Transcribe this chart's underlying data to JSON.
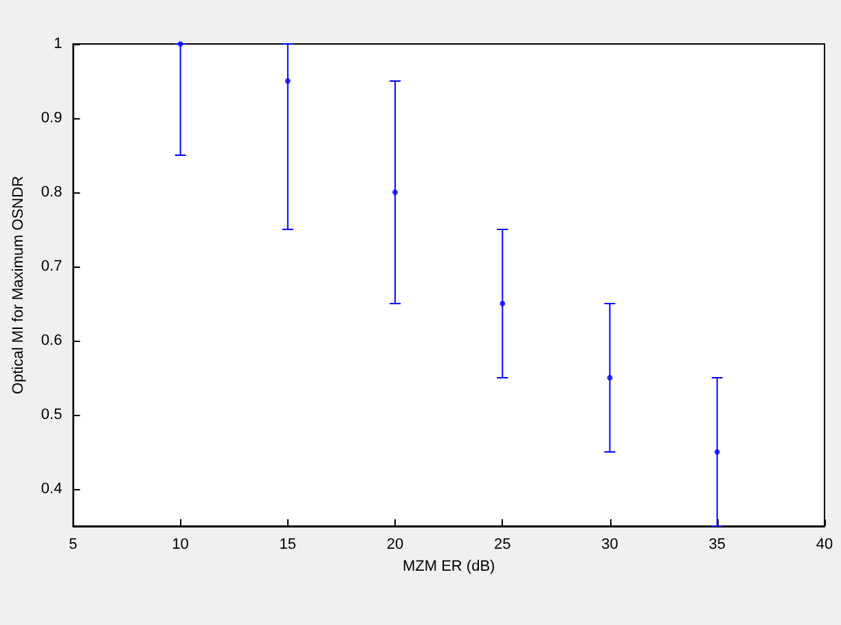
{
  "chart_data": {
    "type": "scatter",
    "xlabel": "MZM ER (dB)",
    "ylabel": "Optical MI for Maximum OSNDR",
    "x": [
      10,
      15,
      20,
      25,
      30,
      35
    ],
    "series": [
      {
        "color": "#0000ff",
        "values": [
          1.0,
          0.95,
          0.8,
          0.65,
          0.55,
          0.45
        ],
        "errors": [
          [
            0.85,
            1.0
          ],
          [
            0.75,
            1.0
          ],
          [
            0.65,
            0.95
          ],
          [
            0.55,
            0.75
          ],
          [
            0.45,
            0.65
          ],
          [
            0.35,
            0.55
          ]
        ]
      }
    ],
    "xlim": [
      5,
      40
    ],
    "xticks": [
      5,
      10,
      15,
      20,
      25,
      30,
      35,
      40
    ],
    "ylim": [
      0.35,
      1
    ],
    "yticks": [
      0.4,
      0.5,
      0.6,
      0.7,
      0.8,
      0.9,
      1
    ],
    "grid": false,
    "marker": "circle"
  }
}
